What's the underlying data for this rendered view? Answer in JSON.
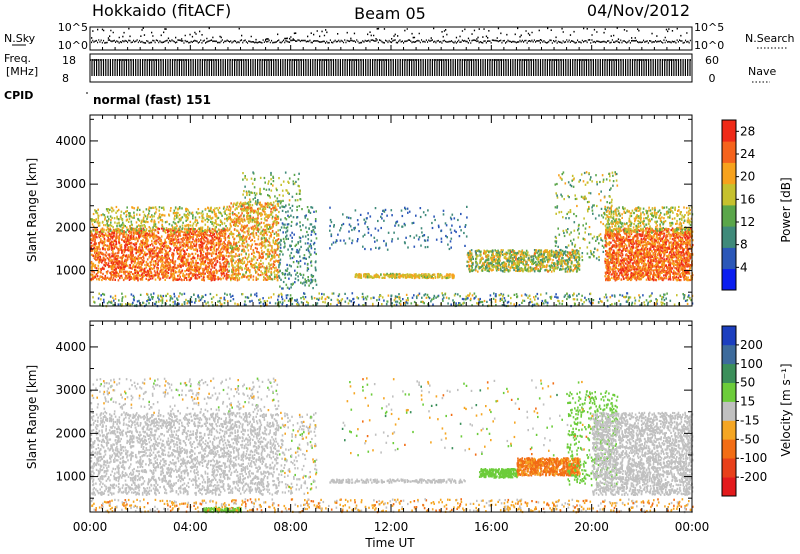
{
  "header": {
    "station": "Hokkaido (fitACF)",
    "beam": "Beam 05",
    "date": "04/Nov/2012"
  },
  "strips": {
    "nsky_label": "N.Sky",
    "nsky_ticks": [
      "10^5",
      "10^0"
    ],
    "nsearch_label": "N.Search",
    "freq_label_line1": "Freq.",
    "freq_label_line2": "[MHz]",
    "freq_ticks": [
      "18",
      "8"
    ],
    "nave_label": "Nave",
    "nave_ticks": [
      "60",
      "0"
    ],
    "cpid_label": "CPID",
    "cpid_value": "normal (fast) 151"
  },
  "chart_data": [
    {
      "type": "heatmap",
      "title": "",
      "xlabel": "Time UT",
      "ylabel": "Slant Range [km]",
      "x_ticks": [
        "00:00",
        "04:00",
        "08:00",
        "12:00",
        "16:00",
        "20:00",
        "00:00"
      ],
      "x_range_hours": [
        0,
        24
      ],
      "ylim": [
        180,
        4600
      ],
      "y_ticks": [
        1000,
        2000,
        3000,
        4000
      ],
      "colorbar": {
        "label": "Power [dB]",
        "ticks": [
          4,
          8,
          12,
          16,
          20,
          24,
          28
        ],
        "range": [
          0,
          30
        ],
        "colors": [
          "#0b1ef0",
          "#2b57b8",
          "#3f8a7a",
          "#5aa64a",
          "#c6c12e",
          "#f7a21c",
          "#f5631c",
          "#ef2a18"
        ]
      },
      "regions": [
        {
          "t": [
            0,
            5.5
          ],
          "r": [
            800,
            2000
          ],
          "value": 24
        },
        {
          "t": [
            5.5,
            7.5
          ],
          "r": [
            800,
            2600
          ],
          "value": 20
        },
        {
          "t": [
            10.5,
            14.5
          ],
          "r": [
            850,
            950
          ],
          "value": 18
        },
        {
          "t": [
            15,
            19.5
          ],
          "r": [
            1000,
            1500
          ],
          "value": 16
        },
        {
          "t": [
            20.5,
            24
          ],
          "r": [
            800,
            2000
          ],
          "value": 24
        }
      ]
    },
    {
      "type": "heatmap",
      "title": "",
      "xlabel": "Time UT",
      "ylabel": "Slant Range [km]",
      "x_ticks": [
        "00:00",
        "04:00",
        "08:00",
        "12:00",
        "16:00",
        "20:00",
        "00:00"
      ],
      "x_range_hours": [
        0,
        24
      ],
      "ylim": [
        180,
        4600
      ],
      "y_ticks": [
        1000,
        2000,
        3000,
        4000
      ],
      "colorbar": {
        "label": "Velocity [m s⁻¹]",
        "ticks": [
          200,
          100,
          50,
          15,
          -15,
          -50,
          -100,
          -200
        ],
        "colors": [
          "#1c3fbf",
          "#3d6b9c",
          "#3b8f5a",
          "#6ccc3a",
          "#c0c0c0",
          "#f5a623",
          "#f26d15",
          "#e8401a",
          "#e31a1c"
        ]
      },
      "regions": [
        {
          "t": [
            0,
            7.5
          ],
          "r": [
            600,
            2500
          ],
          "value": 0
        },
        {
          "t": [
            15.5,
            17
          ],
          "r": [
            1000,
            1200
          ],
          "value": 30
        },
        {
          "t": [
            17,
            19.5
          ],
          "r": [
            1050,
            1450
          ],
          "value": -60
        },
        {
          "t": [
            20,
            24
          ],
          "r": [
            600,
            2500
          ],
          "value": 0
        }
      ]
    }
  ]
}
